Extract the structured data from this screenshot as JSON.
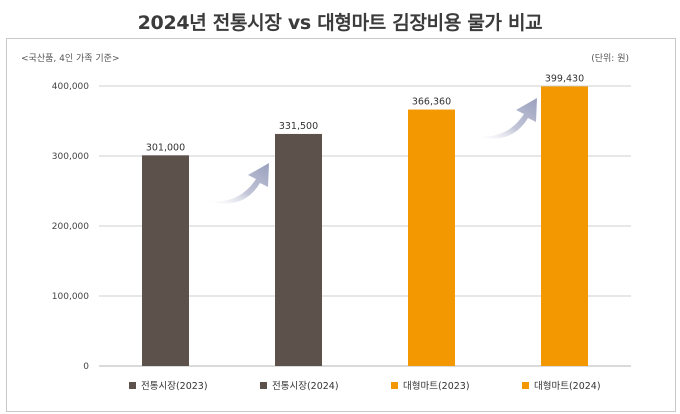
{
  "title": "2024년 전통시장 vs 대형마트 김장비용 물가 비교",
  "note_left": "<국산품, 4인 가족 기준>",
  "note_right": "(단위: 원)",
  "colors": {
    "traditional": "#5c514b",
    "mart": "#f39800",
    "arrow": "#a7acc6",
    "grid": "#cfcfcf"
  },
  "chart_data": {
    "type": "bar",
    "categories": [
      "전통시장(2023)",
      "전통시장(2024)",
      "대형마트(2023)",
      "대형마트(2024)"
    ],
    "values": [
      301000,
      331500,
      366360,
      399430
    ],
    "value_labels": [
      "301,000",
      "331,500",
      "366,360",
      "399,430"
    ],
    "bar_colors": [
      "#5c514b",
      "#5c514b",
      "#f39800",
      "#f39800"
    ],
    "yticks": [
      0,
      100000,
      200000,
      300000,
      400000
    ],
    "ytick_labels": [
      "0",
      "100,000",
      "200,000",
      "300,000",
      "400,000"
    ],
    "ylim": [
      0,
      400000
    ],
    "xlabel": "",
    "ylabel": "",
    "grid": true,
    "legend": [
      "전통시장(2023)",
      "전통시장(2024)",
      "대형마트(2023)",
      "대형마트(2024)"
    ],
    "legend_position": "bottom"
  }
}
